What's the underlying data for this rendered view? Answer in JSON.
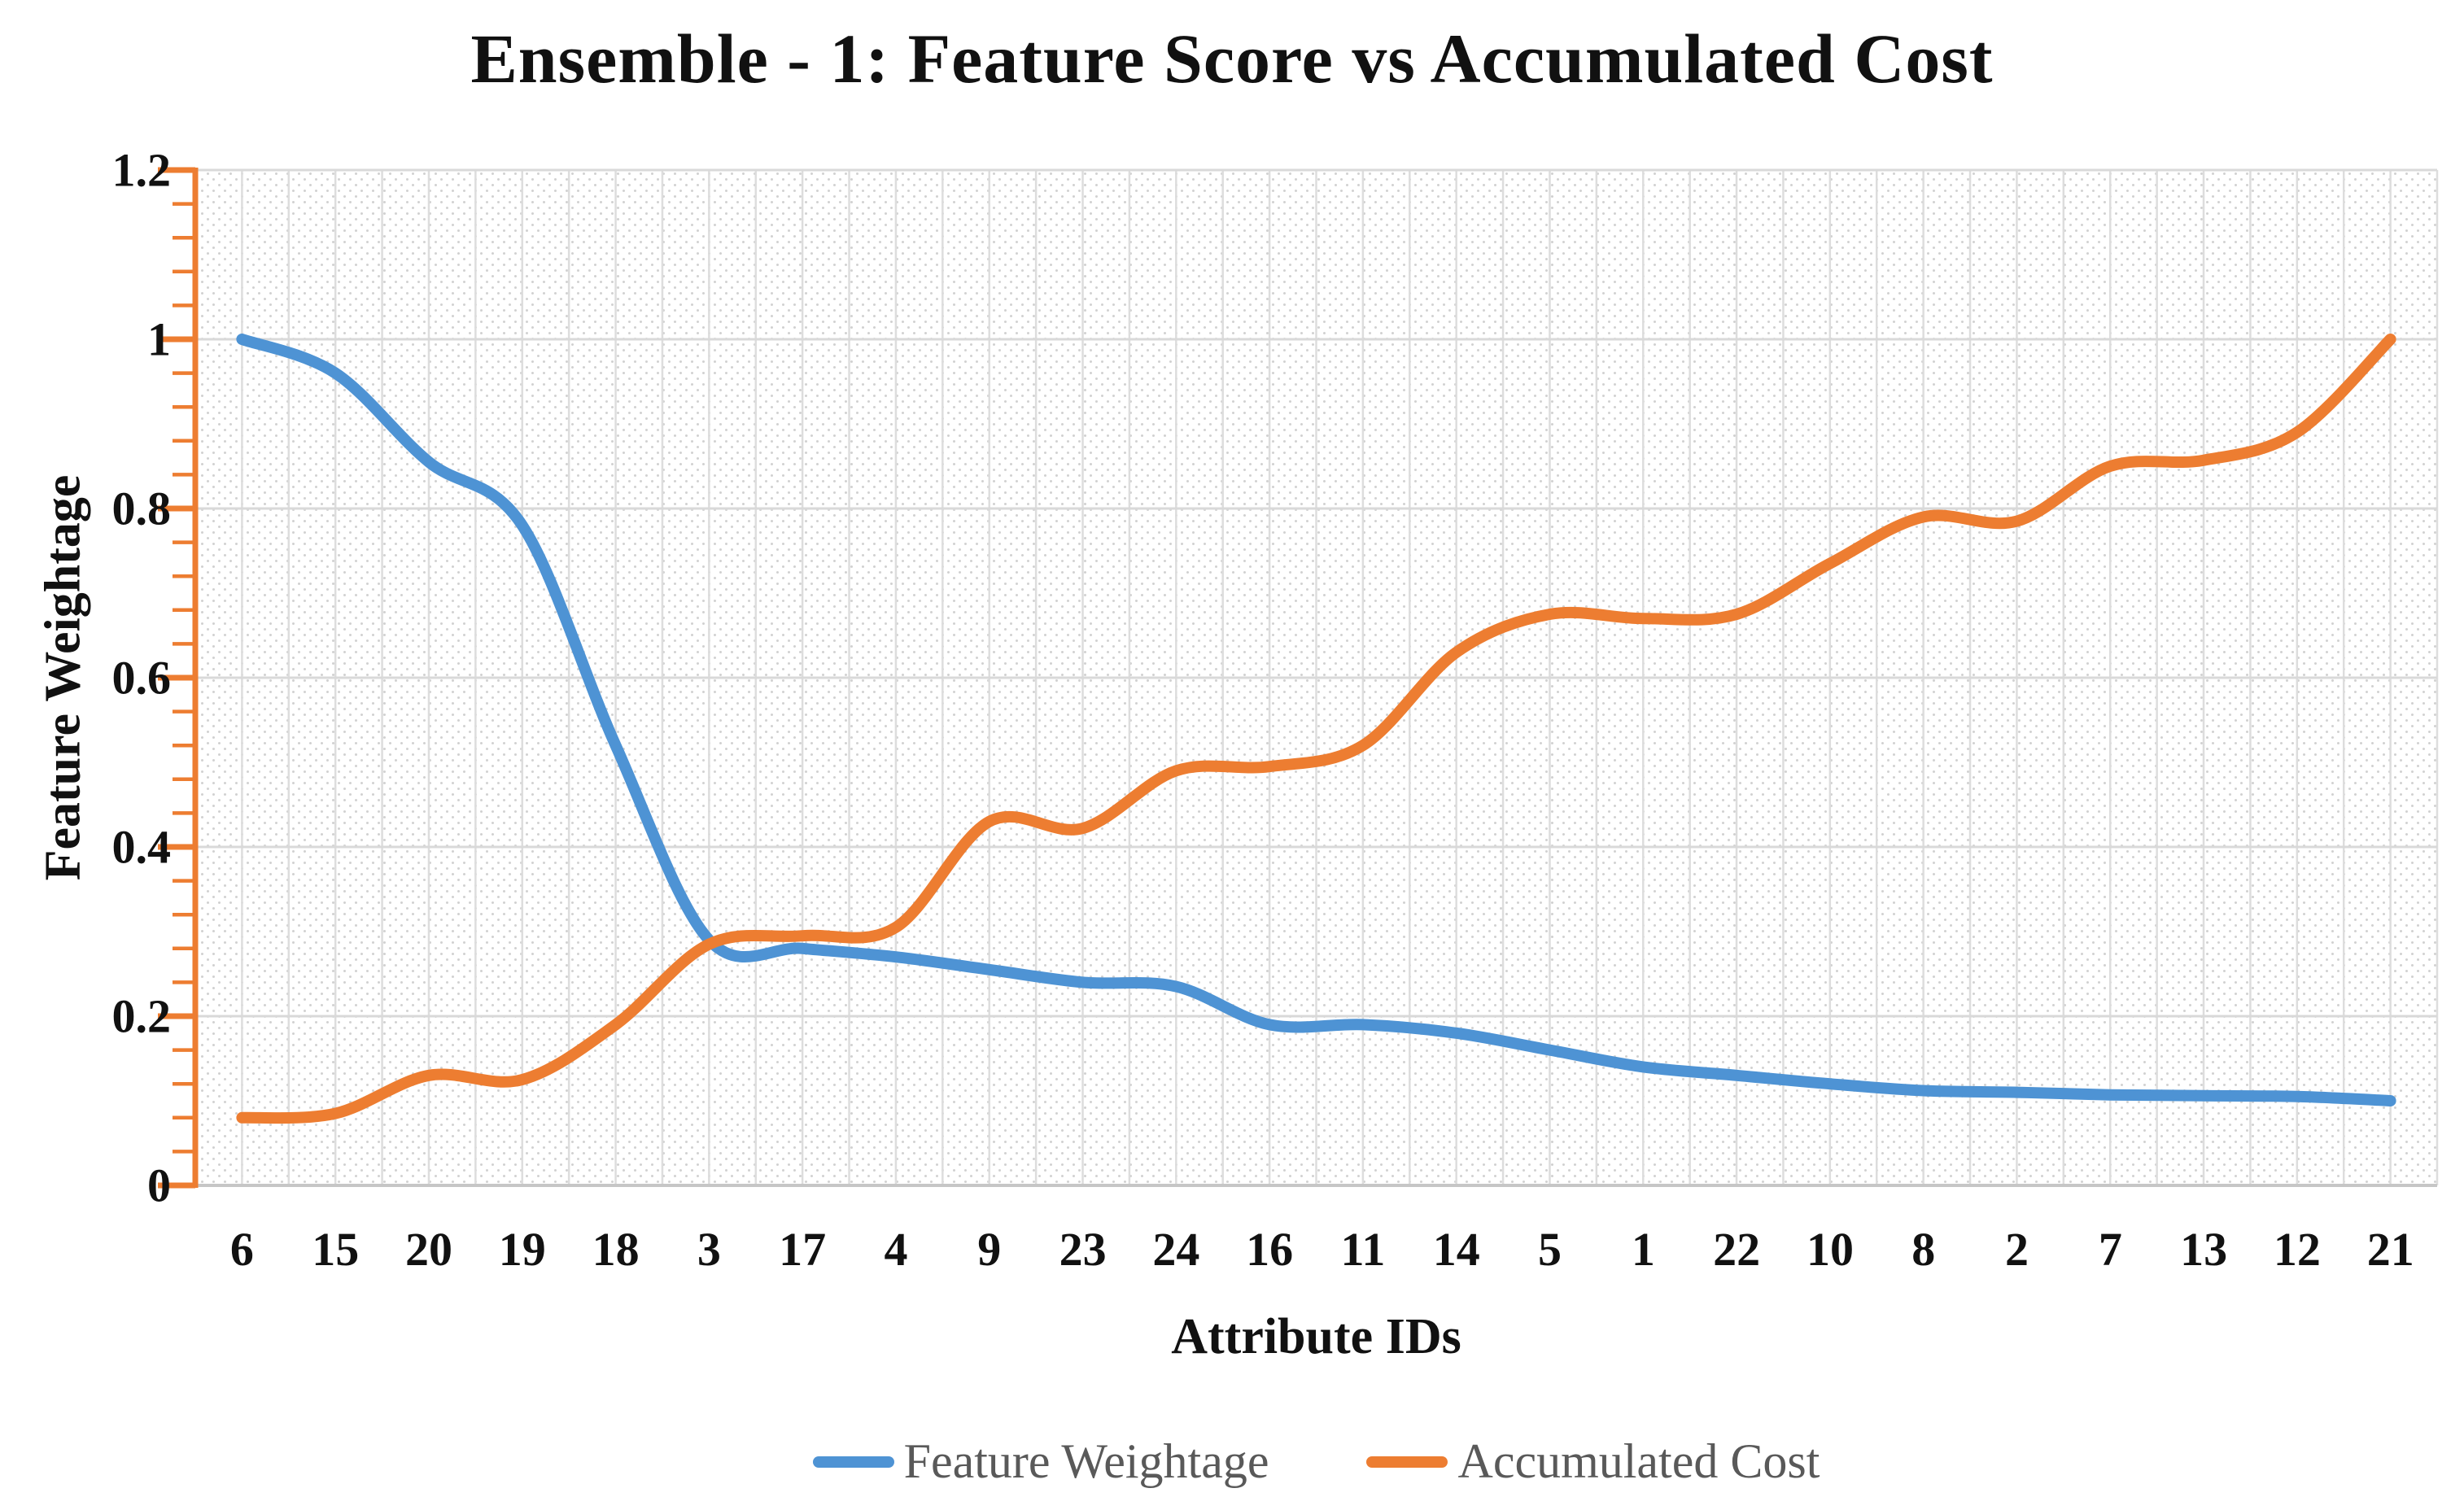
{
  "chart_data": {
    "type": "line",
    "smooth": true,
    "title": "Ensemble - 1: Feature Score vs Accumulated Cost",
    "xlabel": "Attribute IDs",
    "ylabel": "Feature Weightage",
    "ylim": [
      0,
      1.2
    ],
    "y_major_unit": 0.2,
    "y_minor_unit": 0.04,
    "y_tick_labels": [
      "1.2",
      "1",
      "0.8",
      "0.6",
      "0.4",
      "0.2",
      "0"
    ],
    "y_tick_values": [
      1.2,
      1.0,
      0.8,
      0.6,
      0.4,
      0.2,
      0
    ],
    "grid": "fine vertical half-category lines + major horizontal lines, dotted diagonal hatch fill",
    "legend_position": "bottom",
    "categories": [
      "6",
      "15",
      "20",
      "19",
      "18",
      "3",
      "17",
      "4",
      "9",
      "23",
      "24",
      "16",
      "11",
      "14",
      "5",
      "1",
      "22",
      "10",
      "8",
      "2",
      "7",
      "13",
      "12",
      "21"
    ],
    "series": [
      {
        "name": "Feature Weightage",
        "color": "#4E93D4",
        "values": [
          1.0,
          0.96,
          0.855,
          0.78,
          0.52,
          0.29,
          0.28,
          0.27,
          0.255,
          0.24,
          0.235,
          0.19,
          0.19,
          0.18,
          0.16,
          0.14,
          0.13,
          0.12,
          0.112,
          0.11,
          0.107,
          0.106,
          0.105,
          0.1
        ]
      },
      {
        "name": "Accumulated Cost",
        "color": "#ED7D31",
        "values": [
          0.08,
          0.085,
          0.13,
          0.125,
          0.19,
          0.285,
          0.295,
          0.305,
          0.43,
          0.422,
          0.49,
          0.495,
          0.52,
          0.63,
          0.675,
          0.67,
          0.675,
          0.735,
          0.79,
          0.785,
          0.85,
          0.857,
          0.89,
          1.0
        ]
      }
    ]
  },
  "style_colors": {
    "y_axis_line": "#ED7D31",
    "x_axis_line": "#C6C6C6",
    "major_gridline": "#D9D9D9",
    "minor_gridline": "#DDDDDD",
    "hatch_dot": "#C9C9C9",
    "legend_text": "#595959",
    "title_text": "#111111"
  }
}
